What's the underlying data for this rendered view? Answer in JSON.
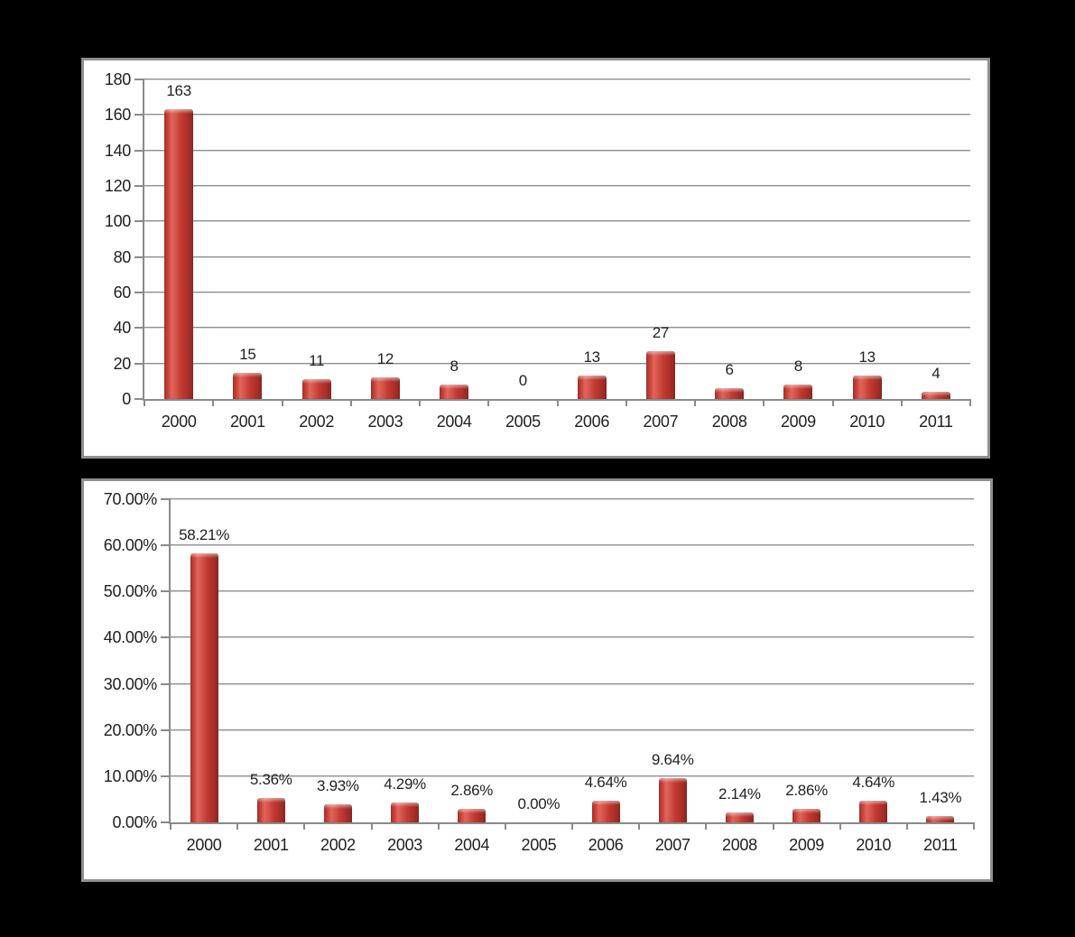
{
  "page": {
    "background_color": "#000000",
    "panel_background": "#ffffff",
    "panel_border_color": "#8f8f8f",
    "gridline_color": "#9a9a9a",
    "text_color": "#1f1f1f"
  },
  "chart_data": [
    {
      "type": "bar",
      "title": "",
      "xlabel": "",
      "ylabel": "",
      "categories": [
        "2000",
        "2001",
        "2002",
        "2003",
        "2004",
        "2005",
        "2006",
        "2007",
        "2008",
        "2009",
        "2010",
        "2011"
      ],
      "values": [
        163,
        15,
        11,
        12,
        8,
        0,
        13,
        27,
        6,
        8,
        13,
        4
      ],
      "data_labels": [
        "163",
        "15",
        "11",
        "12",
        "8",
        "0",
        "13",
        "27",
        "6",
        "8",
        "13",
        "4"
      ],
      "ylim": [
        0,
        180
      ],
      "ytick_step": 20,
      "ytick_labels_bottom_to_top": [
        "0",
        "20",
        "40",
        "60",
        "80",
        "100",
        "120",
        "140",
        "160",
        "180"
      ],
      "grid": true,
      "legend": "none",
      "bar_color": "#c0392b"
    },
    {
      "type": "bar",
      "title": "",
      "xlabel": "",
      "ylabel": "",
      "categories": [
        "2000",
        "2001",
        "2002",
        "2003",
        "2004",
        "2005",
        "2006",
        "2007",
        "2008",
        "2009",
        "2010",
        "2011"
      ],
      "values": [
        58.21,
        5.36,
        3.93,
        4.29,
        2.86,
        0,
        4.64,
        9.64,
        2.14,
        2.86,
        4.64,
        1.43
      ],
      "data_labels": [
        "58.21%",
        "5.36%",
        "3.93%",
        "4.29%",
        "2.86%",
        "0.00%",
        "4.64%",
        "9.64%",
        "2.14%",
        "2.86%",
        "4.64%",
        "1.43%"
      ],
      "ylim": [
        0,
        70
      ],
      "ytick_step": 10,
      "ytick_labels_bottom_to_top": [
        "0.00%",
        "10.00%",
        "20.00%",
        "30.00%",
        "40.00%",
        "50.00%",
        "60.00%",
        "70.00%"
      ],
      "grid": true,
      "legend": "none",
      "bar_color": "#c0392b"
    }
  ]
}
